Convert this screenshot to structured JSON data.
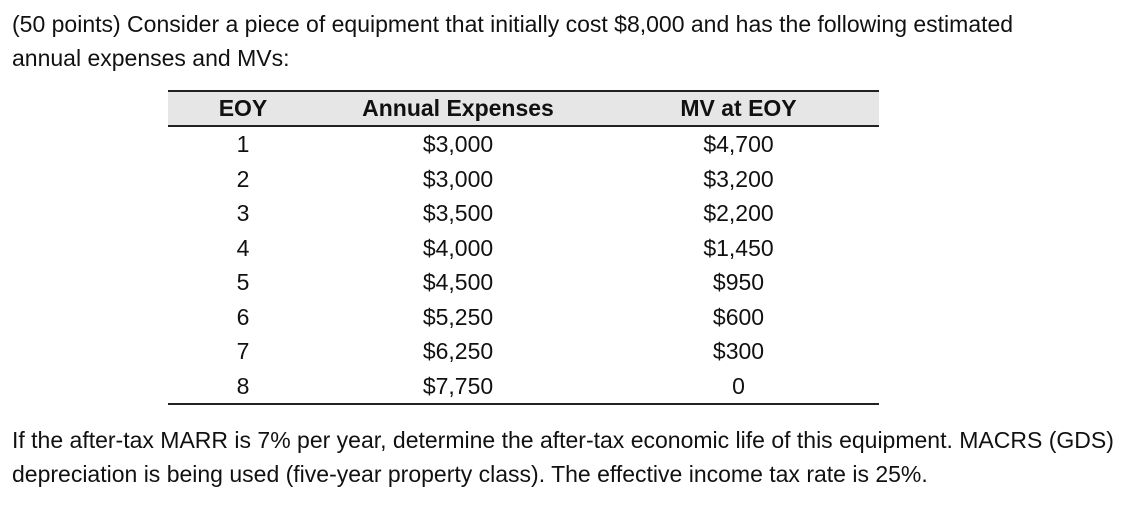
{
  "problem": {
    "intro": "(50 points) Consider a piece of equipment that initially cost $8,000 and has the following estimated annual expenses and MVs:",
    "closing": "If the after-tax MARR is 7% per year, determine the after-tax economic life of this equipment. MACRS (GDS) depreciation is being used (five-year property class). The effective income tax rate is 25%."
  },
  "table": {
    "headers": {
      "eoy": "EOY",
      "expenses": "Annual Expenses",
      "mv": "MV at EOY"
    },
    "rows": [
      {
        "eoy": "1",
        "expenses": "$3,000",
        "mv": "$4,700"
      },
      {
        "eoy": "2",
        "expenses": "$3,000",
        "mv": "$3,200"
      },
      {
        "eoy": "3",
        "expenses": "$3,500",
        "mv": "$2,200"
      },
      {
        "eoy": "4",
        "expenses": "$4,000",
        "mv": "$1,450"
      },
      {
        "eoy": "5",
        "expenses": "$4,500",
        "mv": "$950"
      },
      {
        "eoy": "6",
        "expenses": "$5,250",
        "mv": "$600"
      },
      {
        "eoy": "7",
        "expenses": "$6,250",
        "mv": "$300"
      },
      {
        "eoy": "8",
        "expenses": "$7,750",
        "mv": "0"
      }
    ]
  }
}
